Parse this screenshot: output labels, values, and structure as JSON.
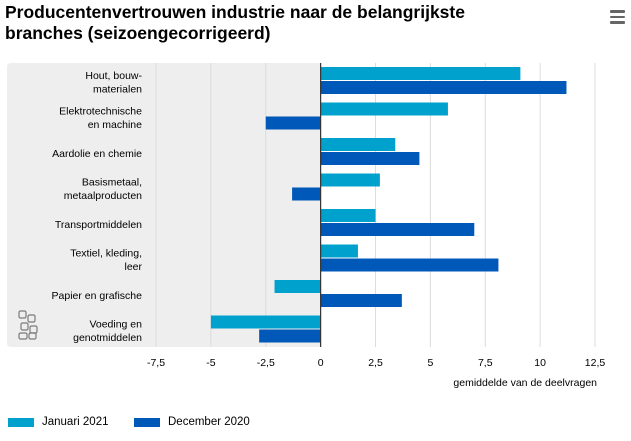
{
  "title": {
    "line1": "Producentenvertrouwen industrie naar de belangrijkste",
    "line2": "branches (seizoengecorrigeerd)"
  },
  "menu": {
    "icon": "hamburger-menu-icon"
  },
  "logo": {
    "icon": "cbs-logo-icon"
  },
  "colors": {
    "series1": "#00a1cd",
    "series2": "#0058b8",
    "panel": "#eeeeee",
    "grid": "#dcdcdc",
    "zero": "#333333"
  },
  "legend": [
    {
      "label": "Januari 2021",
      "color": "#00a1cd"
    },
    {
      "label": "December 2020",
      "color": "#0058b8"
    }
  ],
  "chart_data": {
    "type": "bar",
    "orientation": "horizontal",
    "categories": [
      [
        "Hout, bouw-",
        "materialen"
      ],
      [
        "Elektrotechnische",
        "en machine"
      ],
      [
        "Aardolie en chemie"
      ],
      [
        "Basismetaal,",
        "metaalproducten"
      ],
      [
        "Transportmiddelen"
      ],
      [
        "Textiel, kleding,",
        "leer"
      ],
      [
        "Papier en grafische"
      ],
      [
        "Voeding en",
        "genotmiddelen"
      ]
    ],
    "series": [
      {
        "name": "Januari 2021",
        "values": [
          9.1,
          5.8,
          3.4,
          2.7,
          2.5,
          1.7,
          -2.1,
          -5.0
        ]
      },
      {
        "name": "December 2020",
        "values": [
          11.2,
          -2.5,
          4.5,
          -1.3,
          7.0,
          8.1,
          3.7,
          -2.8
        ]
      }
    ],
    "xlim": [
      -7.5,
      12.5
    ],
    "xticks": [
      -7.5,
      -5,
      -2.5,
      0,
      2.5,
      5,
      7.5,
      10,
      12.5
    ],
    "xtick_labels": [
      "-7,5",
      "-5",
      "-2,5",
      "0",
      "2,5",
      "5",
      "7,5",
      "10",
      "12,5"
    ],
    "xlabel": "gemiddelde van de deelvragen",
    "grid": true,
    "legend_position": "bottom-left"
  }
}
